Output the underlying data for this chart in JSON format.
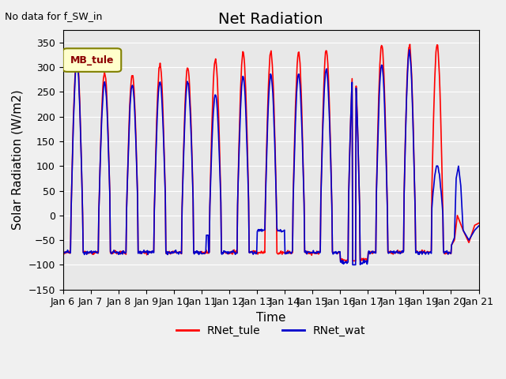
{
  "title": "Net Radiation",
  "xlabel": "Time",
  "ylabel": "Solar Radiation (W/m2)",
  "top_left_text": "No data for f_SW_in",
  "legend_label": "MB_tule",
  "ylim": [
    -150,
    375
  ],
  "yticks": [
    -150,
    -100,
    -50,
    0,
    50,
    100,
    150,
    200,
    250,
    300,
    350
  ],
  "x_tick_labels": [
    "Jan 6",
    "Jan 7",
    "Jan 8",
    "Jan 9",
    "Jan 10",
    "Jan 11",
    "Jan 12",
    "Jan 13",
    "Jan 14",
    "Jan 15",
    "Jan 16",
    "Jan 17",
    "Jan 18",
    "Jan 19",
    "Jan 20",
    "Jan 21"
  ],
  "line1_color": "#ff0000",
  "line2_color": "#0000cc",
  "line1_label": "RNet_tule",
  "line2_label": "RNet_wat",
  "bg_color": "#e8e8e8",
  "title_fontsize": 14,
  "axis_fontsize": 11,
  "tick_fontsize": 9
}
